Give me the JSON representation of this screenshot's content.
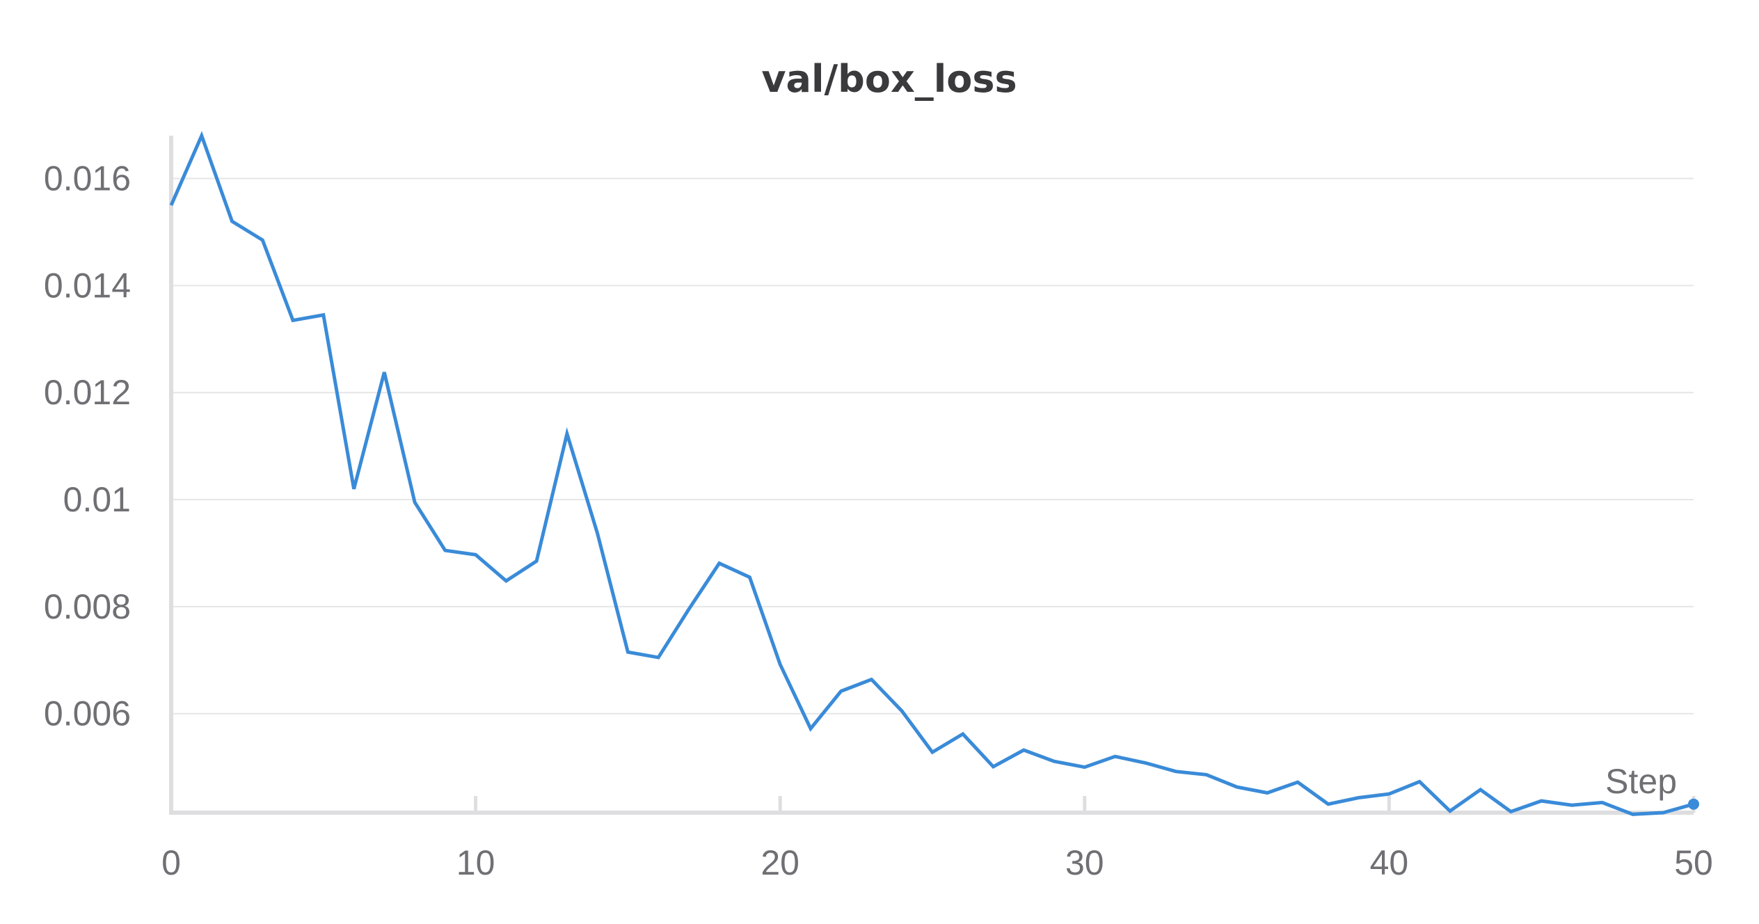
{
  "chart_data": {
    "type": "line",
    "title": "val/box_loss",
    "xlabel": "Step",
    "ylabel": "",
    "xlim": [
      0,
      50
    ],
    "ylim": [
      0.00415,
      0.0168
    ],
    "x_ticks": [
      0,
      10,
      20,
      30,
      40,
      50
    ],
    "x_tick_labels": [
      "0",
      "10",
      "20",
      "30",
      "40",
      "50"
    ],
    "y_ticks": [
      0.006,
      0.008,
      0.01,
      0.012,
      0.014,
      0.016
    ],
    "y_tick_labels": [
      "0.006",
      "0.008",
      "0.01",
      "0.012",
      "0.014",
      "0.016"
    ],
    "grid": true,
    "colors": {
      "series": "#3a8bd8",
      "grid": "#e6e6e8",
      "axis": "#dedee0",
      "text": "#6f6f74"
    },
    "series": [
      {
        "x": [
          0,
          1,
          2,
          3,
          4,
          5,
          6,
          7,
          8,
          9,
          10,
          11,
          12,
          13,
          14,
          15,
          16,
          17,
          18,
          19,
          20,
          21,
          22,
          23,
          24,
          25,
          26,
          27,
          28,
          29,
          30,
          31,
          32,
          33,
          34,
          35,
          36,
          37,
          38,
          39,
          40,
          41,
          42,
          43,
          44,
          45,
          46,
          47,
          48,
          49,
          50
        ],
        "values": [
          0.0155,
          0.0168,
          0.0152,
          0.01485,
          0.01335,
          0.01345,
          0.0102,
          0.01238,
          0.00995,
          0.00905,
          0.00897,
          0.00848,
          0.00885,
          0.01123,
          0.00937,
          0.00715,
          0.00705,
          0.00795,
          0.00881,
          0.00855,
          0.00692,
          0.00572,
          0.00642,
          0.00664,
          0.00605,
          0.00528,
          0.00562,
          0.00501,
          0.00532,
          0.00511,
          0.005,
          0.0052,
          0.00508,
          0.00492,
          0.00486,
          0.00463,
          0.00452,
          0.00472,
          0.00431,
          0.00443,
          0.0045,
          0.00473,
          0.00418,
          0.00458,
          0.00417,
          0.00437,
          0.00429,
          0.00434,
          0.00412,
          0.00415,
          0.00431
        ]
      }
    ]
  }
}
